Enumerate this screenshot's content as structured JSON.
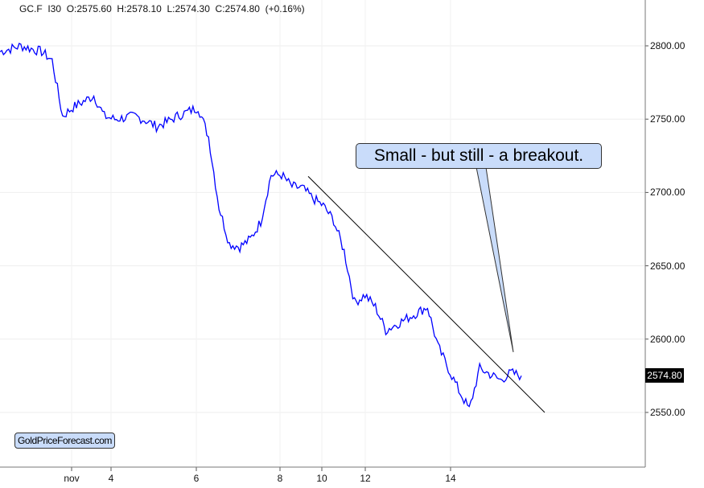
{
  "header": {
    "symbol": "GC.F",
    "interval": "I30",
    "open": "O:2575.60",
    "high": "H:2578.10",
    "low": "L:2574.30",
    "close": "C:2574.80",
    "change": "(+0.16%)"
  },
  "annotation": "Small - but still - a breakout.",
  "brand": "GoldPriceForecast.com",
  "last_price": "2574.80",
  "chart_data": {
    "type": "line",
    "title": "",
    "xlabel": "",
    "ylabel": "",
    "ylim": [
      2505,
      2835
    ],
    "yticks": [
      "2800.00",
      "2750.00",
      "2700.00",
      "2650.00",
      "2600.00",
      "2550.00"
    ],
    "xticks": [
      "nov",
      "4",
      "6",
      "8",
      "10",
      "12",
      "14"
    ],
    "grid": true,
    "line_color": "#0000ff",
    "values": [
      2796,
      2798,
      2800,
      2798,
      2796,
      2790,
      2752,
      2758,
      2762,
      2766,
      2752,
      2750,
      2751,
      2752,
      2749,
      2745,
      2748,
      2752,
      2755,
      2758,
      2738,
      2690,
      2665,
      2663,
      2668,
      2680,
      2712,
      2712,
      2704,
      2703,
      2696,
      2691,
      2681,
      2660,
      2625,
      2630,
      2622,
      2606,
      2610,
      2614,
      2618,
      2622,
      2595,
      2580,
      2565,
      2552,
      2580,
      2576,
      2572,
      2577,
      2575
    ],
    "trendline": {
      "from": 2711,
      "to": 2550,
      "color": "#000000"
    }
  }
}
